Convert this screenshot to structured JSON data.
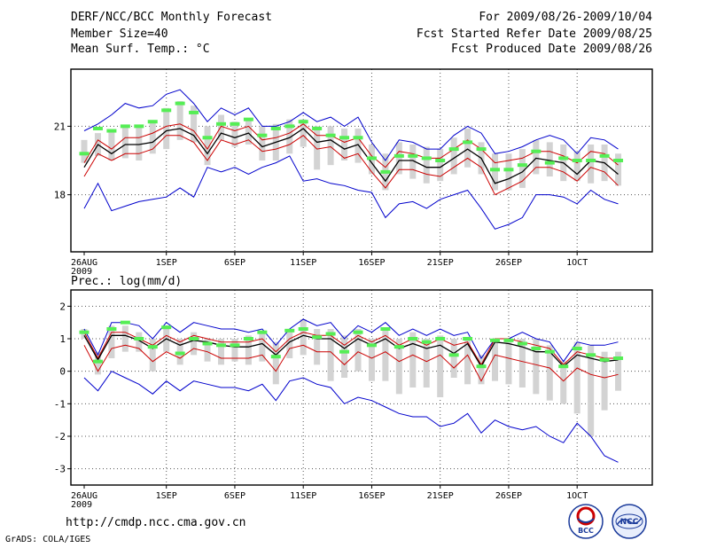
{
  "header": {
    "title": "DERF/NCC/BCC Monthly Forecast",
    "member_size": "Member Size=40",
    "variable": "Mean Surf. Temp.: °C",
    "for_range": "For 2009/08/26-2009/10/04",
    "refer_date": "Fcst Started Refer Date 2009/08/25",
    "produced_date": "Fcst Produced Date 2009/08/26"
  },
  "footer": {
    "url": "http://cmdp.ncc.cma.gov.cn",
    "credit": "GrADS: COLA/IGES",
    "logo1_text": "BCC",
    "logo2_text": "NCC"
  },
  "colors": {
    "bar": "#d3d3d3",
    "median": "#55ee55",
    "mean": "#000000",
    "band": "#cc0000",
    "extreme": "#0000cc",
    "grid": "#555555"
  },
  "chart_data": [
    {
      "type": "line",
      "title": "Mean Surf. Temp.: °C",
      "xlabel": "",
      "ylabel": "°C",
      "x": [
        1,
        2,
        3,
        4,
        5,
        6,
        7,
        8,
        9,
        10,
        11,
        12,
        13,
        14,
        15,
        16,
        17,
        18,
        19,
        20,
        21,
        22,
        23,
        24,
        25,
        26,
        27,
        28,
        29,
        30,
        31,
        32,
        33,
        34,
        35,
        36,
        37,
        38,
        39,
        40
      ],
      "x_tick_days": [
        1,
        7,
        12,
        17,
        22,
        27,
        32,
        37
      ],
      "x_tick_labels": [
        "26AUG\n2009",
        "1SEP",
        "6SEP",
        "11SEP",
        "16SEP",
        "21SEP",
        "26SEP",
        "1OCT"
      ],
      "ylim": [
        15.5,
        23.5
      ],
      "y_ticks": [
        18,
        21
      ],
      "grid": true,
      "series": [
        {
          "name": "max",
          "values": [
            20.8,
            21.1,
            21.5,
            22.0,
            21.8,
            21.9,
            22.4,
            22.6,
            22.0,
            21.2,
            21.8,
            21.5,
            21.8,
            21.0,
            21.0,
            21.2,
            21.6,
            21.2,
            21.4,
            21.0,
            21.4,
            20.3,
            19.5,
            20.4,
            20.3,
            20.0,
            20.0,
            20.6,
            21.0,
            20.7,
            19.8,
            19.9,
            20.1,
            20.4,
            20.6,
            20.4,
            19.8,
            20.5,
            20.4,
            20.0
          ]
        },
        {
          "name": "upper",
          "values": [
            19.4,
            20.4,
            20.0,
            20.5,
            20.5,
            20.7,
            21.0,
            21.1,
            20.8,
            20.0,
            21.0,
            20.8,
            21.0,
            20.4,
            20.5,
            20.7,
            21.1,
            20.6,
            20.6,
            20.3,
            20.5,
            19.7,
            19.2,
            19.9,
            19.8,
            19.6,
            19.6,
            20.0,
            20.4,
            20.0,
            19.4,
            19.5,
            19.6,
            19.9,
            19.9,
            19.7,
            19.4,
            19.9,
            19.8,
            19.3
          ]
        },
        {
          "name": "mean",
          "values": [
            19.2,
            20.2,
            19.8,
            20.2,
            20.2,
            20.3,
            20.8,
            20.9,
            20.6,
            19.8,
            20.7,
            20.5,
            20.7,
            20.1,
            20.3,
            20.5,
            20.9,
            20.3,
            20.4,
            20.0,
            20.2,
            19.4,
            18.6,
            19.5,
            19.5,
            19.2,
            19.2,
            19.6,
            20.0,
            19.6,
            18.5,
            18.7,
            19.0,
            19.6,
            19.5,
            19.4,
            18.9,
            19.5,
            19.4,
            18.9
          ]
        },
        {
          "name": "lower",
          "values": [
            18.8,
            19.8,
            19.5,
            19.8,
            19.8,
            20.0,
            20.6,
            20.6,
            20.3,
            19.5,
            20.4,
            20.2,
            20.4,
            19.9,
            20.0,
            20.2,
            20.6,
            20.0,
            20.1,
            19.6,
            19.8,
            19.0,
            18.3,
            19.1,
            19.1,
            18.9,
            18.8,
            19.2,
            19.6,
            19.2,
            18.0,
            18.3,
            18.6,
            19.2,
            19.2,
            19.0,
            18.6,
            19.2,
            19.0,
            18.4
          ]
        },
        {
          "name": "min",
          "values": [
            17.4,
            18.5,
            17.3,
            17.5,
            17.7,
            17.8,
            17.9,
            18.3,
            17.9,
            19.2,
            19.0,
            19.2,
            18.9,
            19.2,
            19.4,
            19.7,
            18.6,
            18.7,
            18.5,
            18.4,
            18.2,
            18.1,
            17.0,
            17.6,
            17.7,
            17.4,
            17.8,
            18.0,
            18.2,
            17.4,
            16.5,
            16.7,
            17.0,
            18.0,
            18.0,
            17.9,
            17.6,
            18.2,
            17.8,
            17.6
          ]
        },
        {
          "name": "median",
          "values": [
            19.8,
            20.9,
            20.8,
            21.0,
            21.0,
            21.2,
            21.7,
            22.0,
            21.6,
            20.5,
            21.1,
            21.1,
            21.3,
            20.6,
            20.9,
            21.0,
            21.2,
            20.9,
            20.6,
            20.5,
            20.5,
            19.6,
            19.0,
            19.7,
            19.7,
            19.6,
            19.5,
            20.0,
            20.3,
            20.0,
            19.1,
            19.1,
            19.3,
            19.9,
            19.4,
            19.6,
            19.5,
            19.5,
            19.7,
            19.5
          ]
        },
        {
          "name": "bar_top",
          "values": [
            20.4,
            20.7,
            20.8,
            21.0,
            21.0,
            21.2,
            21.8,
            22.1,
            21.9,
            21.0,
            21.5,
            21.2,
            21.3,
            21.0,
            21.1,
            21.3,
            21.3,
            21.0,
            21.0,
            20.9,
            20.9,
            20.2,
            19.8,
            20.3,
            20.2,
            20.1,
            20.0,
            20.5,
            20.9,
            20.3,
            19.8,
            19.8,
            20.0,
            20.4,
            20.3,
            20.2,
            19.9,
            20.2,
            20.2,
            19.8
          ]
        },
        {
          "name": "bar_bottom",
          "values": [
            19.4,
            19.7,
            19.5,
            19.6,
            19.5,
            19.8,
            20.0,
            20.4,
            20.3,
            19.3,
            20.4,
            20.1,
            20.2,
            19.5,
            19.5,
            19.8,
            20.1,
            19.1,
            19.3,
            19.5,
            19.4,
            18.9,
            18.2,
            18.9,
            18.7,
            18.5,
            18.6,
            18.9,
            19.2,
            18.9,
            18.2,
            18.2,
            18.3,
            18.9,
            18.8,
            18.6,
            18.6,
            18.5,
            18.6,
            18.4
          ]
        }
      ]
    },
    {
      "type": "line",
      "title": "Prec.: log(mm/d)",
      "xlabel": "",
      "ylabel": "log(mm/d)",
      "x": [
        1,
        2,
        3,
        4,
        5,
        6,
        7,
        8,
        9,
        10,
        11,
        12,
        13,
        14,
        15,
        16,
        17,
        18,
        19,
        20,
        21,
        22,
        23,
        24,
        25,
        26,
        27,
        28,
        29,
        30,
        31,
        32,
        33,
        34,
        35,
        36,
        37,
        38,
        39,
        40
      ],
      "x_tick_days": [
        1,
        7,
        12,
        17,
        22,
        27,
        32,
        37
      ],
      "x_tick_labels": [
        "26AUG\n2009",
        "1SEP",
        "6SEP",
        "11SEP",
        "16SEP",
        "21SEP",
        "26SEP",
        "1OCT"
      ],
      "ylim": [
        -3.5,
        2.5
      ],
      "y_ticks": [
        -3,
        -2,
        -1,
        0,
        1,
        2
      ],
      "grid": true,
      "series": [
        {
          "name": "max",
          "values": [
            1.3,
            0.5,
            1.5,
            1.5,
            1.4,
            1.0,
            1.5,
            1.2,
            1.5,
            1.4,
            1.3,
            1.3,
            1.2,
            1.3,
            0.8,
            1.3,
            1.6,
            1.4,
            1.5,
            1.0,
            1.4,
            1.2,
            1.5,
            1.1,
            1.3,
            1.1,
            1.3,
            1.1,
            1.2,
            0.4,
            1.0,
            1.0,
            1.2,
            1.0,
            0.9,
            0.3,
            0.9,
            0.8,
            0.8,
            0.9
          ]
        },
        {
          "name": "upper",
          "values": [
            1.2,
            0.4,
            1.2,
            1.2,
            1.0,
            0.8,
            1.1,
            0.9,
            1.1,
            1.0,
            0.9,
            0.9,
            0.9,
            1.0,
            0.6,
            1.0,
            1.2,
            1.1,
            1.1,
            0.8,
            1.1,
            0.9,
            1.1,
            0.8,
            1.0,
            0.8,
            1.0,
            0.8,
            0.9,
            0.2,
            1.0,
            1.0,
            0.9,
            0.8,
            0.7,
            0.2,
            0.6,
            0.5,
            0.4,
            0.4
          ]
        },
        {
          "name": "mean",
          "values": [
            1.1,
            0.35,
            1.1,
            1.1,
            0.95,
            0.7,
            1.0,
            0.8,
            0.95,
            0.9,
            0.8,
            0.75,
            0.75,
            0.85,
            0.5,
            0.9,
            1.1,
            1.0,
            1.0,
            0.7,
            1.0,
            0.8,
            1.0,
            0.7,
            0.85,
            0.7,
            0.8,
            0.55,
            0.85,
            0.15,
            0.9,
            0.85,
            0.75,
            0.6,
            0.6,
            0.15,
            0.5,
            0.4,
            0.3,
            0.35
          ]
        },
        {
          "name": "lower",
          "values": [
            0.8,
            0.0,
            0.7,
            0.8,
            0.7,
            0.3,
            0.6,
            0.4,
            0.7,
            0.6,
            0.4,
            0.4,
            0.4,
            0.5,
            0.0,
            0.7,
            0.8,
            0.6,
            0.6,
            0.2,
            0.6,
            0.4,
            0.6,
            0.3,
            0.5,
            0.3,
            0.5,
            0.1,
            0.5,
            -0.3,
            0.5,
            0.4,
            0.3,
            0.2,
            0.1,
            -0.3,
            0.1,
            -0.1,
            -0.2,
            -0.1
          ]
        },
        {
          "name": "min",
          "values": [
            -0.2,
            -0.6,
            0.0,
            -0.2,
            -0.4,
            -0.7,
            -0.3,
            -0.6,
            -0.3,
            -0.4,
            -0.5,
            -0.5,
            -0.6,
            -0.4,
            -0.9,
            -0.3,
            -0.2,
            -0.4,
            -0.5,
            -1.0,
            -0.8,
            -0.9,
            -1.1,
            -1.3,
            -1.4,
            -1.4,
            -1.7,
            -1.6,
            -1.3,
            -1.9,
            -1.5,
            -1.7,
            -1.8,
            -1.7,
            -2.0,
            -2.2,
            -1.6,
            -2.0,
            -2.6,
            -2.8
          ]
        },
        {
          "name": "median",
          "values": [
            1.2,
            0.3,
            1.3,
            1.5,
            1.0,
            0.75,
            1.35,
            0.55,
            1.0,
            0.85,
            0.8,
            0.8,
            1.0,
            1.2,
            0.45,
            1.25,
            1.3,
            1.05,
            1.15,
            0.6,
            1.2,
            0.8,
            1.3,
            0.75,
            1.0,
            0.9,
            1.0,
            0.5,
            1.0,
            0.15,
            0.95,
            0.95,
            0.85,
            0.7,
            0.6,
            0.15,
            0.7,
            0.5,
            0.35,
            0.4
          ]
        },
        {
          "name": "bar_top",
          "values": [
            1.3,
            0.6,
            1.4,
            1.4,
            1.2,
            1.0,
            1.4,
            1.0,
            1.2,
            1.0,
            1.0,
            1.0,
            1.1,
            1.2,
            0.9,
            1.2,
            1.6,
            1.3,
            1.3,
            1.1,
            1.3,
            1.0,
            1.3,
            1.0,
            1.2,
            1.0,
            1.1,
            1.0,
            1.0,
            0.5,
            1.0,
            0.9,
            1.0,
            1.0,
            0.8,
            0.3,
            0.9,
            0.8,
            0.6,
            0.6
          ]
        },
        {
          "name": "bar_bottom",
          "values": [
            1.0,
            -0.1,
            0.4,
            0.6,
            0.6,
            0.0,
            0.6,
            0.2,
            0.5,
            0.3,
            0.2,
            0.3,
            0.2,
            0.3,
            -0.4,
            0.4,
            0.5,
            0.2,
            -0.3,
            -0.2,
            0.0,
            -0.3,
            -0.3,
            -0.7,
            -0.5,
            -0.5,
            -0.8,
            -0.2,
            -0.4,
            -0.4,
            -0.3,
            -0.4,
            -0.5,
            -0.7,
            -0.9,
            -1.0,
            -1.3,
            -2.0,
            -1.2,
            -0.6
          ]
        }
      ]
    }
  ]
}
